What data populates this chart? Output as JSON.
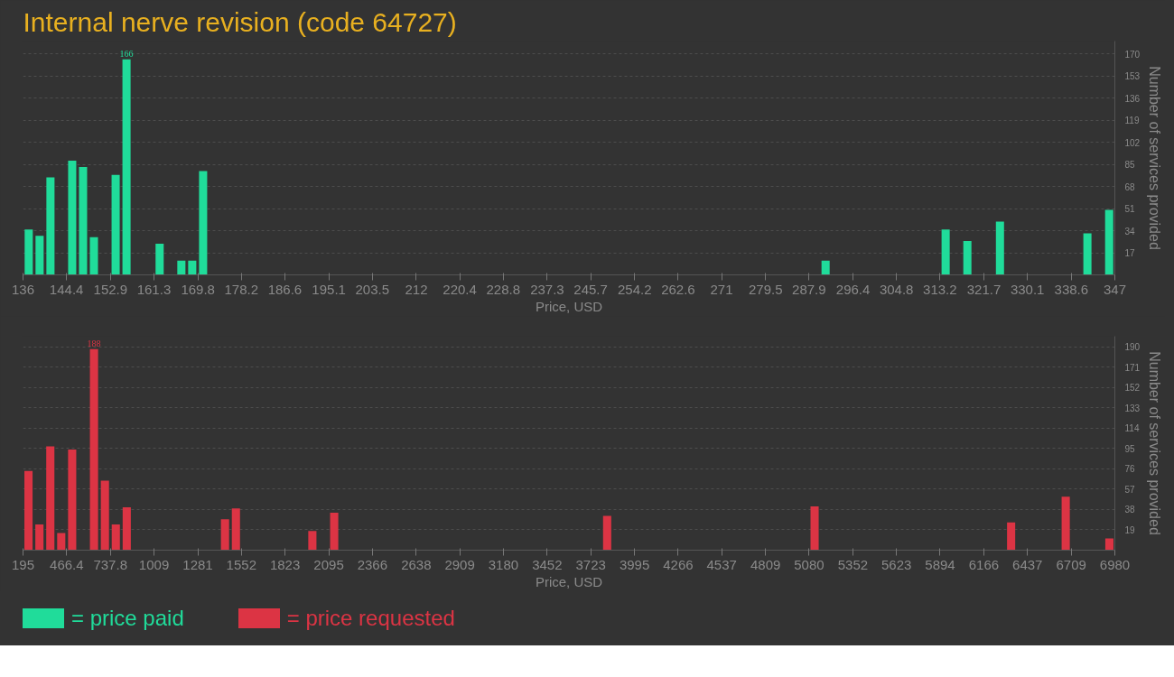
{
  "chart_data": [
    {
      "type": "bar",
      "title": "Internal nerve revision (code 64727)",
      "xlabel": "Price, USD",
      "ylabel": "Number of services provided",
      "x": [
        137.1,
        139.2,
        141.3,
        145.5,
        147.6,
        149.7,
        153.9,
        156.0,
        162.4,
        166.6,
        168.7,
        170.8,
        291.1,
        314.3,
        318.5,
        324.8,
        341.7,
        345.9
      ],
      "series": [
        {
          "name": "= price paid",
          "color": "#20dc9a",
          "values": [
            35,
            30,
            75,
            88,
            83,
            29,
            77,
            166,
            24,
            11,
            11,
            80,
            11,
            35,
            26,
            41,
            32,
            50
          ],
          "value_labels": [
            null,
            null,
            null,
            null,
            null,
            null,
            null,
            "166",
            null,
            null,
            null,
            null,
            null,
            null,
            null,
            null,
            null,
            null
          ]
        }
      ],
      "xlim": [
        136,
        347
      ],
      "xticks": [
        136,
        144.4,
        152.9,
        161.3,
        169.8,
        178.2,
        186.6,
        195.1,
        203.5,
        212,
        220.4,
        228.8,
        237.3,
        245.7,
        254.2,
        262.6,
        271,
        279.5,
        287.9,
        296.4,
        304.8,
        313.2,
        321.7,
        330.1,
        338.6,
        347
      ],
      "ylim": [
        0,
        180
      ],
      "yticks": [
        17,
        34,
        51,
        68,
        85,
        102,
        119,
        136,
        153,
        170
      ],
      "grid": "y",
      "legend": "bottom"
    },
    {
      "type": "bar",
      "xlabel": "Price, USD",
      "ylabel": "Number of services provided",
      "x": [
        228.9,
        296.8,
        364.6,
        432.5,
        500.3,
        636.0,
        703.9,
        771.7,
        839.6,
        1450.2,
        1518.1,
        1993.0,
        2128.7,
        3825.0,
        5114.1,
        6335.4,
        6674.7,
        6946.1
      ],
      "series": [
        {
          "name": "= price requested",
          "color": "#dc3444",
          "values": [
            74,
            24,
            97,
            16,
            94,
            188,
            65,
            24,
            40,
            29,
            39,
            18,
            35,
            32,
            41,
            26,
            50,
            11
          ],
          "value_labels": [
            null,
            null,
            null,
            null,
            null,
            "188",
            null,
            null,
            null,
            null,
            null,
            null,
            null,
            null,
            null,
            null,
            null,
            null
          ]
        }
      ],
      "xlim": [
        195,
        6980
      ],
      "xticks": [
        195,
        466.4,
        737.8,
        1009,
        1281,
        1552,
        1823,
        2095,
        2366,
        2638,
        2909,
        3180,
        3452,
        3723,
        3995,
        4266,
        4537,
        4809,
        5080,
        5352,
        5623,
        5894,
        6166,
        6437,
        6709,
        6980
      ],
      "ylim": [
        0,
        200
      ],
      "yticks": [
        19,
        38,
        57,
        76,
        95,
        114,
        133,
        152,
        171,
        190
      ],
      "grid": "y",
      "legend": "bottom"
    }
  ]
}
